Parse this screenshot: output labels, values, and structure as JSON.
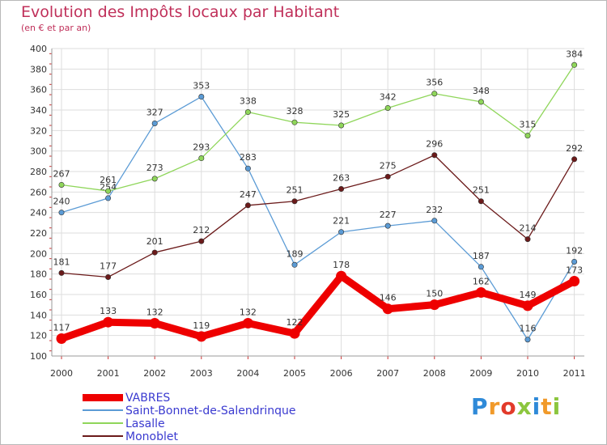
{
  "chart_data": {
    "type": "line",
    "title": "Evolution des Impôts locaux par Habitant",
    "subtitle": "(en € et par an)",
    "xlabel": "",
    "ylabel": "",
    "ylim": [
      100,
      400
    ],
    "ytick_step": 20,
    "grid": true,
    "legend_position": "bottom-left",
    "categories": [
      "2000",
      "2001",
      "2002",
      "2003",
      "2004",
      "2005",
      "2006",
      "2007",
      "2008",
      "2009",
      "2010",
      "2011"
    ],
    "series": [
      {
        "name": "VABRES",
        "color": "#ee0000",
        "emphasis": true,
        "values": [
          117,
          133,
          132,
          119,
          132,
          122,
          178,
          146,
          150,
          162,
          149,
          173
        ]
      },
      {
        "name": "Saint-Bonnet-de-Salendrinque",
        "color": "#5b9bd5",
        "emphasis": false,
        "values": [
          240,
          254,
          327,
          353,
          283,
          189,
          221,
          227,
          232,
          187,
          116,
          192
        ]
      },
      {
        "name": "Lasalle",
        "color": "#8fd65a",
        "emphasis": false,
        "values": [
          267,
          261,
          273,
          293,
          338,
          328,
          325,
          342,
          356,
          348,
          315,
          384
        ]
      },
      {
        "name": "Monoblet",
        "color": "#6b1a1a",
        "emphasis": false,
        "values": [
          181,
          177,
          201,
          212,
          247,
          251,
          263,
          275,
          296,
          251,
          214,
          292
        ]
      }
    ]
  },
  "logo": {
    "text": "Proxiti",
    "colors": [
      "#2f8ad8",
      "#f19a2a",
      "#e23a2a",
      "#8cc63e",
      "#2f8ad8",
      "#f19a2a",
      "#8cc63e"
    ]
  }
}
